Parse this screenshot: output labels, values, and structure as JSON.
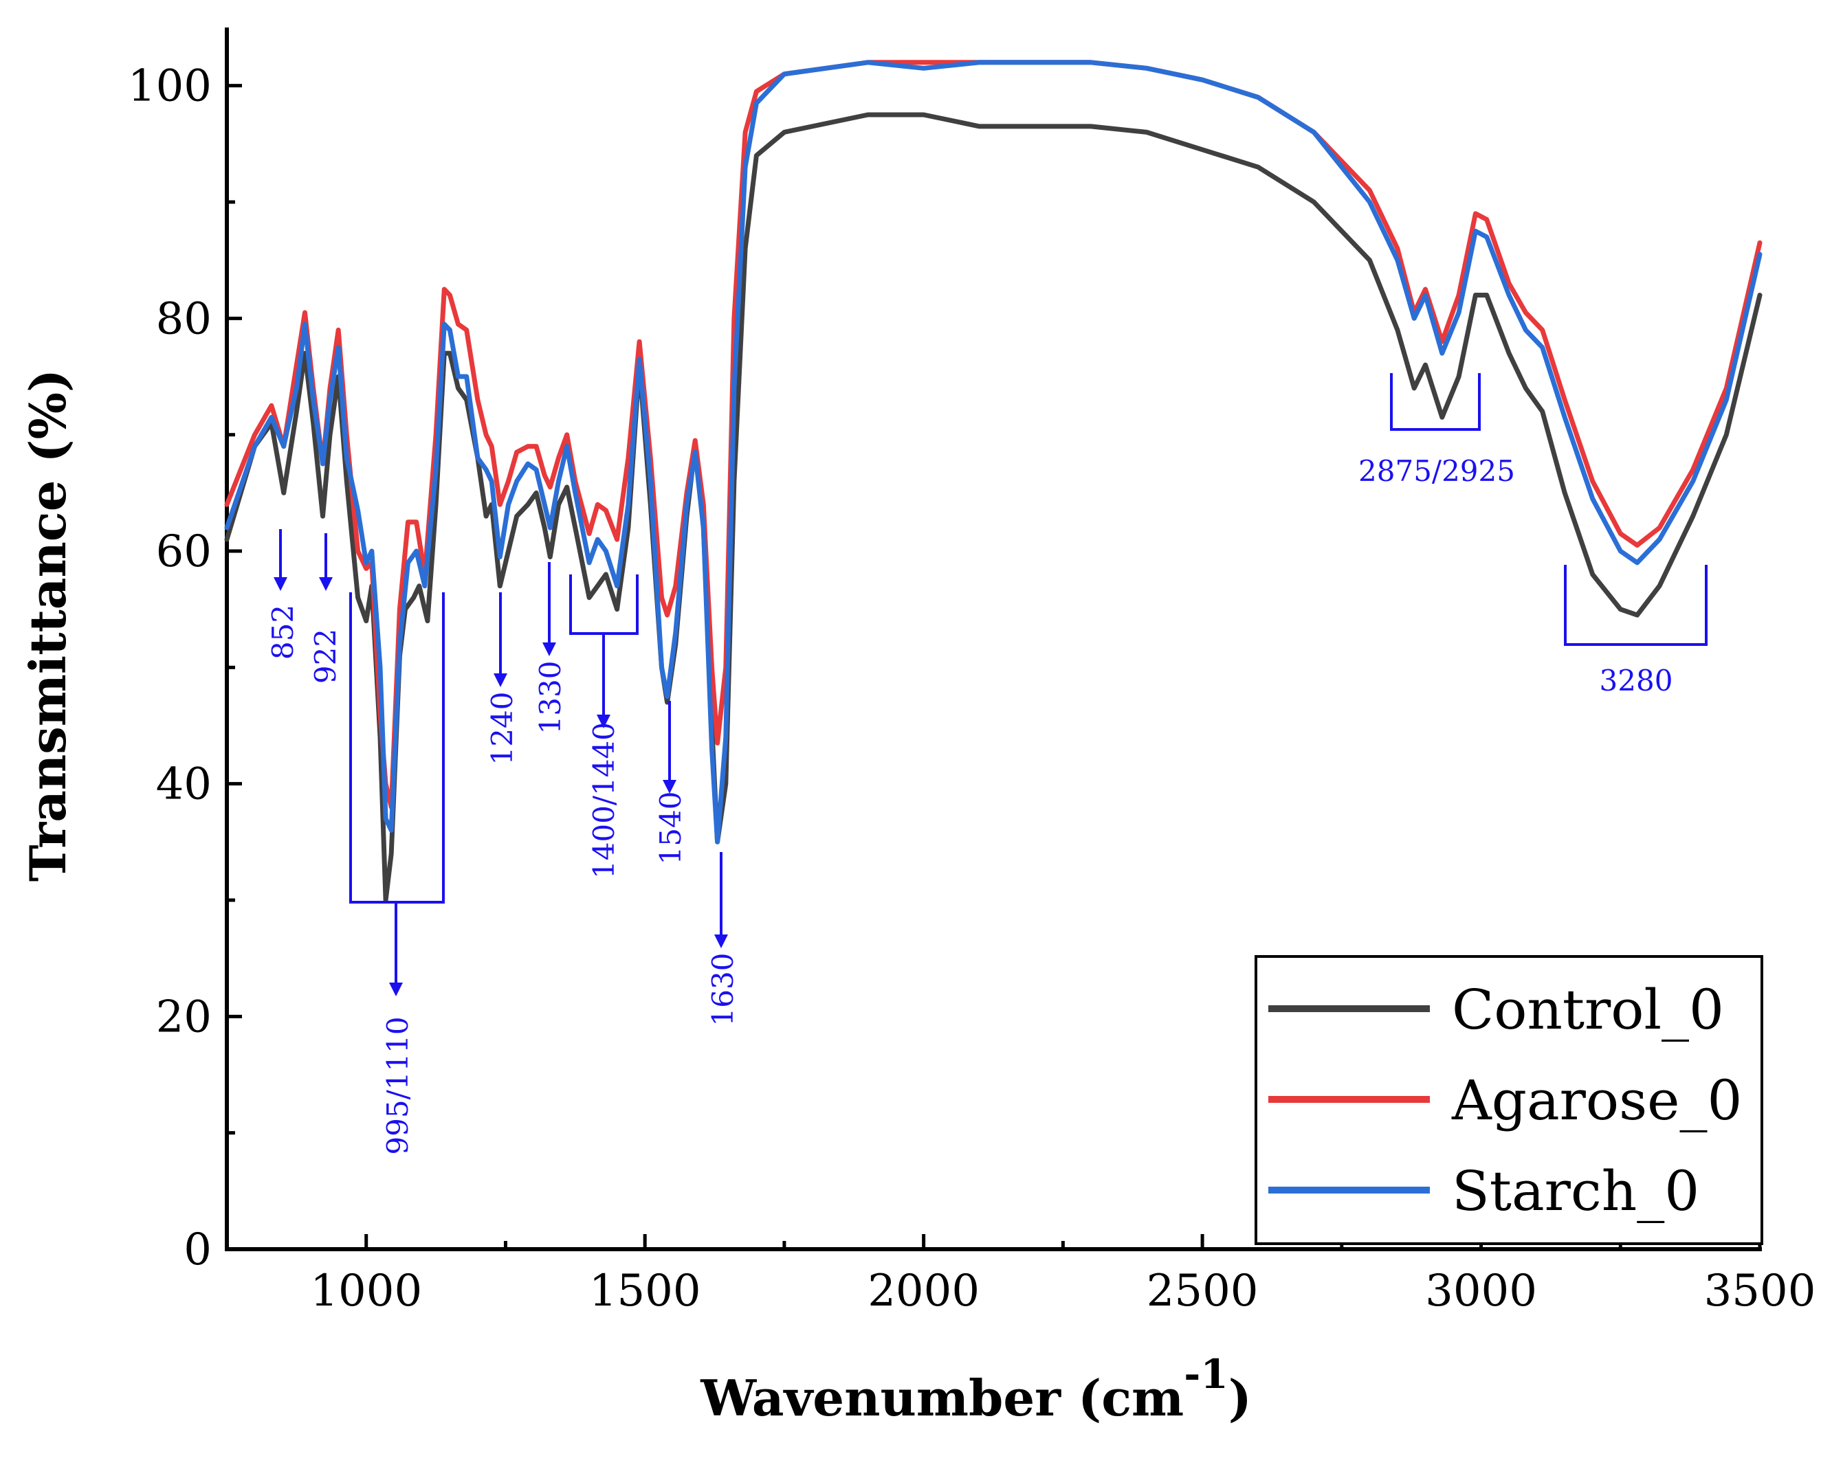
{
  "chart_data": {
    "type": "line",
    "title": "",
    "xlabel": "Wavenumber (cm",
    "xlabel_sup": "-1",
    "xlabel_close": ")",
    "ylabel": "Transmittance (%)",
    "xlim": [
      750,
      3500
    ],
    "ylim": [
      0,
      105
    ],
    "x_ticks": [
      1000,
      1500,
      2000,
      2500,
      3000,
      3500
    ],
    "x_tick_labels": [
      "1000",
      "1500",
      "2000",
      "2500",
      "3000",
      "3500"
    ],
    "y_ticks": [
      0,
      20,
      40,
      60,
      80,
      100
    ],
    "y_tick_labels": [
      "0",
      "20",
      "40",
      "60",
      "80",
      "100"
    ],
    "legend_position": "bottom-right",
    "series": [
      {
        "name": "Control_0",
        "color": "#404040",
        "points": [
          [
            750,
            61
          ],
          [
            800,
            69
          ],
          [
            830,
            71
          ],
          [
            852,
            65
          ],
          [
            875,
            72
          ],
          [
            890,
            77
          ],
          [
            905,
            71
          ],
          [
            922,
            63
          ],
          [
            935,
            70
          ],
          [
            950,
            75
          ],
          [
            965,
            66
          ],
          [
            985,
            56
          ],
          [
            1000,
            54
          ],
          [
            1010,
            57
          ],
          [
            1025,
            44
          ],
          [
            1035,
            30
          ],
          [
            1045,
            34
          ],
          [
            1060,
            51
          ],
          [
            1070,
            55
          ],
          [
            1085,
            56
          ],
          [
            1095,
            57
          ],
          [
            1110,
            54
          ],
          [
            1125,
            64
          ],
          [
            1140,
            77
          ],
          [
            1150,
            77
          ],
          [
            1165,
            74
          ],
          [
            1180,
            73
          ],
          [
            1200,
            68
          ],
          [
            1215,
            63
          ],
          [
            1225,
            64
          ],
          [
            1240,
            57
          ],
          [
            1255,
            60
          ],
          [
            1270,
            63
          ],
          [
            1290,
            64
          ],
          [
            1305,
            65
          ],
          [
            1320,
            62
          ],
          [
            1330,
            59.5
          ],
          [
            1345,
            64
          ],
          [
            1360,
            65.5
          ],
          [
            1375,
            62
          ],
          [
            1400,
            56
          ],
          [
            1415,
            57
          ],
          [
            1430,
            58
          ],
          [
            1450,
            55
          ],
          [
            1470,
            62
          ],
          [
            1490,
            76
          ],
          [
            1510,
            64
          ],
          [
            1530,
            50
          ],
          [
            1540,
            47
          ],
          [
            1555,
            52
          ],
          [
            1575,
            63
          ],
          [
            1590,
            69
          ],
          [
            1605,
            62
          ],
          [
            1620,
            45
          ],
          [
            1630,
            35
          ],
          [
            1645,
            40
          ],
          [
            1660,
            66
          ],
          [
            1680,
            86
          ],
          [
            1700,
            94
          ],
          [
            1750,
            96
          ],
          [
            1900,
            97.5
          ],
          [
            2000,
            97.5
          ],
          [
            2100,
            96.5
          ],
          [
            2300,
            96.5
          ],
          [
            2400,
            96
          ],
          [
            2500,
            94.5
          ],
          [
            2600,
            93
          ],
          [
            2700,
            90
          ],
          [
            2800,
            85
          ],
          [
            2850,
            79
          ],
          [
            2880,
            74
          ],
          [
            2900,
            76
          ],
          [
            2930,
            71.5
          ],
          [
            2960,
            75
          ],
          [
            2990,
            82
          ],
          [
            3010,
            82
          ],
          [
            3050,
            77
          ],
          [
            3080,
            74
          ],
          [
            3110,
            72
          ],
          [
            3150,
            65
          ],
          [
            3200,
            58
          ],
          [
            3250,
            55
          ],
          [
            3280,
            54.5
          ],
          [
            3320,
            57
          ],
          [
            3380,
            63
          ],
          [
            3440,
            70
          ],
          [
            3500,
            82
          ]
        ]
      },
      {
        "name": "Agarose_0",
        "color": "#e8393b",
        "points": [
          [
            750,
            64
          ],
          [
            800,
            70
          ],
          [
            830,
            72.5
          ],
          [
            852,
            69
          ],
          [
            875,
            76
          ],
          [
            890,
            80.5
          ],
          [
            905,
            74
          ],
          [
            922,
            67.5
          ],
          [
            935,
            74
          ],
          [
            950,
            79
          ],
          [
            965,
            70
          ],
          [
            985,
            60
          ],
          [
            1000,
            58.5
          ],
          [
            1010,
            59
          ],
          [
            1025,
            46
          ],
          [
            1035,
            40
          ],
          [
            1045,
            38
          ],
          [
            1060,
            55
          ],
          [
            1075,
            62.5
          ],
          [
            1090,
            62.5
          ],
          [
            1105,
            58
          ],
          [
            1125,
            70
          ],
          [
            1140,
            82.5
          ],
          [
            1150,
            82
          ],
          [
            1165,
            79.5
          ],
          [
            1180,
            79
          ],
          [
            1200,
            73
          ],
          [
            1215,
            70
          ],
          [
            1225,
            69
          ],
          [
            1240,
            64
          ],
          [
            1255,
            66
          ],
          [
            1270,
            68.5
          ],
          [
            1290,
            69
          ],
          [
            1305,
            69
          ],
          [
            1320,
            66.5
          ],
          [
            1330,
            65.5
          ],
          [
            1345,
            68
          ],
          [
            1360,
            70
          ],
          [
            1375,
            66
          ],
          [
            1400,
            61.5
          ],
          [
            1415,
            64
          ],
          [
            1430,
            63.5
          ],
          [
            1450,
            61
          ],
          [
            1470,
            68
          ],
          [
            1490,
            78
          ],
          [
            1510,
            68
          ],
          [
            1530,
            56
          ],
          [
            1540,
            54.5
          ],
          [
            1555,
            57
          ],
          [
            1575,
            65
          ],
          [
            1590,
            69.5
          ],
          [
            1605,
            64
          ],
          [
            1620,
            50
          ],
          [
            1630,
            43.5
          ],
          [
            1645,
            50
          ],
          [
            1660,
            80
          ],
          [
            1680,
            96
          ],
          [
            1700,
            99.5
          ],
          [
            1750,
            101
          ],
          [
            1900,
            102
          ],
          [
            2000,
            102
          ],
          [
            2100,
            102
          ],
          [
            2300,
            102
          ],
          [
            2400,
            101.5
          ],
          [
            2500,
            100.5
          ],
          [
            2600,
            99
          ],
          [
            2700,
            96
          ],
          [
            2800,
            91
          ],
          [
            2850,
            86
          ],
          [
            2880,
            80.5
          ],
          [
            2900,
            82.5
          ],
          [
            2930,
            78
          ],
          [
            2960,
            82
          ],
          [
            2990,
            89
          ],
          [
            3010,
            88.5
          ],
          [
            3050,
            83
          ],
          [
            3080,
            80.5
          ],
          [
            3110,
            79
          ],
          [
            3150,
            73
          ],
          [
            3200,
            66
          ],
          [
            3250,
            61.5
          ],
          [
            3280,
            60.5
          ],
          [
            3320,
            62
          ],
          [
            3380,
            67
          ],
          [
            3440,
            74
          ],
          [
            3500,
            86.5
          ]
        ]
      },
      {
        "name": "Starch_0",
        "color": "#2b6fd6",
        "points": [
          [
            750,
            62
          ],
          [
            800,
            69
          ],
          [
            830,
            71.5
          ],
          [
            852,
            69
          ],
          [
            875,
            74
          ],
          [
            890,
            79.5
          ],
          [
            905,
            73
          ],
          [
            922,
            67.5
          ],
          [
            935,
            73
          ],
          [
            950,
            77.5
          ],
          [
            965,
            68
          ],
          [
            985,
            63.5
          ],
          [
            1000,
            59
          ],
          [
            1010,
            60
          ],
          [
            1025,
            50
          ],
          [
            1035,
            37
          ],
          [
            1045,
            36
          ],
          [
            1060,
            52
          ],
          [
            1075,
            59
          ],
          [
            1090,
            60
          ],
          [
            1105,
            57
          ],
          [
            1125,
            67
          ],
          [
            1140,
            79.5
          ],
          [
            1150,
            79
          ],
          [
            1165,
            75
          ],
          [
            1180,
            75
          ],
          [
            1200,
            68
          ],
          [
            1215,
            67
          ],
          [
            1225,
            66
          ],
          [
            1240,
            59.5
          ],
          [
            1255,
            64
          ],
          [
            1270,
            66
          ],
          [
            1290,
            67.5
          ],
          [
            1305,
            67
          ],
          [
            1320,
            64
          ],
          [
            1330,
            62
          ],
          [
            1345,
            66
          ],
          [
            1360,
            69
          ],
          [
            1375,
            65
          ],
          [
            1400,
            59
          ],
          [
            1415,
            61
          ],
          [
            1430,
            60
          ],
          [
            1450,
            57
          ],
          [
            1470,
            64
          ],
          [
            1490,
            76.5
          ],
          [
            1510,
            66
          ],
          [
            1530,
            50
          ],
          [
            1540,
            47.5
          ],
          [
            1555,
            53
          ],
          [
            1575,
            64
          ],
          [
            1590,
            68.5
          ],
          [
            1605,
            62
          ],
          [
            1620,
            43
          ],
          [
            1630,
            35
          ],
          [
            1645,
            44
          ],
          [
            1660,
            74
          ],
          [
            1680,
            93
          ],
          [
            1700,
            98.5
          ],
          [
            1750,
            101
          ],
          [
            1900,
            102
          ],
          [
            2000,
            101.5
          ],
          [
            2100,
            102
          ],
          [
            2300,
            102
          ],
          [
            2400,
            101.5
          ],
          [
            2500,
            100.5
          ],
          [
            2600,
            99
          ],
          [
            2700,
            96
          ],
          [
            2800,
            90
          ],
          [
            2850,
            85
          ],
          [
            2880,
            80
          ],
          [
            2900,
            82
          ],
          [
            2930,
            77
          ],
          [
            2960,
            80.5
          ],
          [
            2990,
            87.5
          ],
          [
            3010,
            87
          ],
          [
            3050,
            82
          ],
          [
            3080,
            79
          ],
          [
            3110,
            77.5
          ],
          [
            3150,
            71.5
          ],
          [
            3200,
            64.5
          ],
          [
            3250,
            60
          ],
          [
            3280,
            59
          ],
          [
            3320,
            61
          ],
          [
            3380,
            66
          ],
          [
            3440,
            73
          ],
          [
            3500,
            85.5
          ]
        ]
      }
    ],
    "annotations": {
      "color": "#1a10f0",
      "items": [
        {
          "label": "852",
          "x": 852
        },
        {
          "label": "922",
          "x": 922
        },
        {
          "label": "995/1110",
          "x": 1045
        },
        {
          "label": "1240",
          "x": 1240
        },
        {
          "label": "1330",
          "x": 1330
        },
        {
          "label": "1400/1440",
          "x": 1425
        },
        {
          "label": "1540",
          "x": 1540
        },
        {
          "label": "1630",
          "x": 1630
        },
        {
          "label": "2875/2925",
          "x": 2915
        },
        {
          "label": "3280",
          "x": 3280
        }
      ]
    }
  }
}
